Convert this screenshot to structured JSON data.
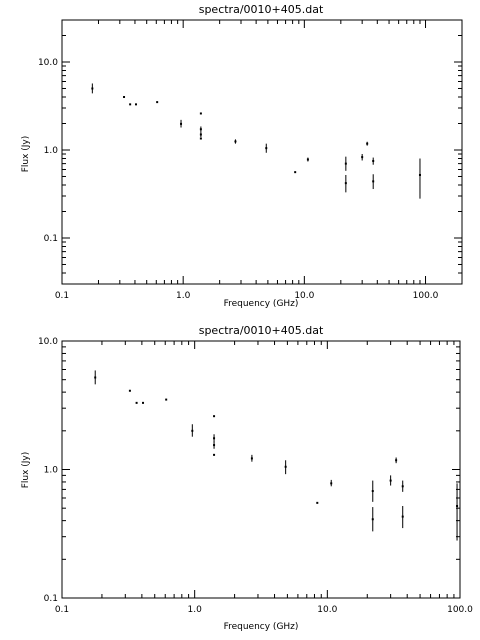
{
  "chart_data": [
    {
      "type": "scatter",
      "title": "spectra/0010+405.dat",
      "xlabel": "Frequency (GHz)",
      "ylabel": "Flux (Jy)",
      "xscale": "log",
      "yscale": "log",
      "xlim": [
        0.1,
        200
      ],
      "ylim": [
        0.03,
        30
      ],
      "xticks": [
        0.1,
        1.0,
        10.0,
        100.0
      ],
      "xtick_labels": [
        "0.1",
        "1.0",
        "10.0",
        "100.0"
      ],
      "yticks": [
        0.1,
        1.0,
        10.0
      ],
      "ytick_labels": [
        "0.1",
        "1.0",
        "10.0"
      ],
      "points": [
        {
          "x": 0.178,
          "y": 5.0,
          "lo": 4.4,
          "hi": 5.7
        },
        {
          "x": 0.325,
          "y": 4.0,
          "lo": 4.0,
          "hi": 4.0
        },
        {
          "x": 0.365,
          "y": 3.3,
          "lo": 3.3,
          "hi": 3.3
        },
        {
          "x": 0.408,
          "y": 3.3,
          "lo": 3.3,
          "hi": 3.3
        },
        {
          "x": 0.61,
          "y": 3.5,
          "lo": 3.5,
          "hi": 3.5
        },
        {
          "x": 0.96,
          "y": 1.98,
          "lo": 1.8,
          "hi": 2.2
        },
        {
          "x": 1.4,
          "y": 2.6,
          "lo": 2.6,
          "hi": 2.6
        },
        {
          "x": 1.4,
          "y": 1.72,
          "lo": 1.6,
          "hi": 1.85
        },
        {
          "x": 1.4,
          "y": 1.5,
          "lo": 1.4,
          "hi": 1.6
        },
        {
          "x": 1.4,
          "y": 1.35,
          "lo": 1.35,
          "hi": 1.35
        },
        {
          "x": 2.7,
          "y": 1.25,
          "lo": 1.18,
          "hi": 1.32
        },
        {
          "x": 4.85,
          "y": 1.05,
          "lo": 0.93,
          "hi": 1.18
        },
        {
          "x": 8.4,
          "y": 0.56,
          "lo": 0.56,
          "hi": 0.56
        },
        {
          "x": 10.7,
          "y": 0.78,
          "lo": 0.74,
          "hi": 0.82
        },
        {
          "x": 22,
          "y": 0.7,
          "lo": 0.58,
          "hi": 0.84
        },
        {
          "x": 22,
          "y": 0.42,
          "lo": 0.33,
          "hi": 0.52
        },
        {
          "x": 30,
          "y": 0.83,
          "lo": 0.76,
          "hi": 0.9
        },
        {
          "x": 33,
          "y": 1.18,
          "lo": 1.12,
          "hi": 1.24
        },
        {
          "x": 37,
          "y": 0.75,
          "lo": 0.68,
          "hi": 0.82
        },
        {
          "x": 37,
          "y": 0.44,
          "lo": 0.36,
          "hi": 0.53
        },
        {
          "x": 90,
          "y": 0.52,
          "lo": 0.28,
          "hi": 0.8
        }
      ]
    },
    {
      "type": "scatter",
      "title": "spectra/0010+405.dat",
      "xlabel": "Frequency (GHz)",
      "ylabel": "Flux (Jy)",
      "xscale": "log",
      "yscale": "log",
      "xlim": [
        0.1,
        100
      ],
      "ylim": [
        0.1,
        10
      ],
      "xticks": [
        0.1,
        1.0,
        10.0,
        100.0
      ],
      "xtick_labels": [
        "0.1",
        "1.0",
        "10.0",
        "100.0"
      ],
      "yticks": [
        0.1,
        1.0,
        10.0
      ],
      "ytick_labels": [
        "0.1",
        "1.0",
        "10.0"
      ],
      "points": [
        {
          "x": 0.178,
          "y": 5.2,
          "lo": 4.6,
          "hi": 5.9
        },
        {
          "x": 0.325,
          "y": 4.1,
          "lo": 4.1,
          "hi": 4.1
        },
        {
          "x": 0.365,
          "y": 3.3,
          "lo": 3.3,
          "hi": 3.3
        },
        {
          "x": 0.408,
          "y": 3.3,
          "lo": 3.3,
          "hi": 3.3
        },
        {
          "x": 0.61,
          "y": 3.5,
          "lo": 3.5,
          "hi": 3.5
        },
        {
          "x": 0.96,
          "y": 2.0,
          "lo": 1.8,
          "hi": 2.25
        },
        {
          "x": 1.4,
          "y": 2.6,
          "lo": 2.6,
          "hi": 2.6
        },
        {
          "x": 1.4,
          "y": 1.75,
          "lo": 1.62,
          "hi": 1.88
        },
        {
          "x": 1.4,
          "y": 1.55,
          "lo": 1.45,
          "hi": 1.66
        },
        {
          "x": 1.4,
          "y": 1.3,
          "lo": 1.3,
          "hi": 1.3
        },
        {
          "x": 2.7,
          "y": 1.22,
          "lo": 1.15,
          "hi": 1.3
        },
        {
          "x": 4.85,
          "y": 1.05,
          "lo": 0.92,
          "hi": 1.18
        },
        {
          "x": 8.4,
          "y": 0.55,
          "lo": 0.55,
          "hi": 0.55
        },
        {
          "x": 10.7,
          "y": 0.78,
          "lo": 0.74,
          "hi": 0.83
        },
        {
          "x": 22,
          "y": 0.68,
          "lo": 0.56,
          "hi": 0.82
        },
        {
          "x": 22,
          "y": 0.41,
          "lo": 0.33,
          "hi": 0.51
        },
        {
          "x": 30,
          "y": 0.82,
          "lo": 0.75,
          "hi": 0.9
        },
        {
          "x": 33,
          "y": 1.18,
          "lo": 1.12,
          "hi": 1.24
        },
        {
          "x": 37,
          "y": 0.74,
          "lo": 0.67,
          "hi": 0.82
        },
        {
          "x": 37,
          "y": 0.43,
          "lo": 0.35,
          "hi": 0.52
        },
        {
          "x": 95,
          "y": 0.52,
          "lo": 0.28,
          "hi": 0.78
        }
      ]
    }
  ]
}
